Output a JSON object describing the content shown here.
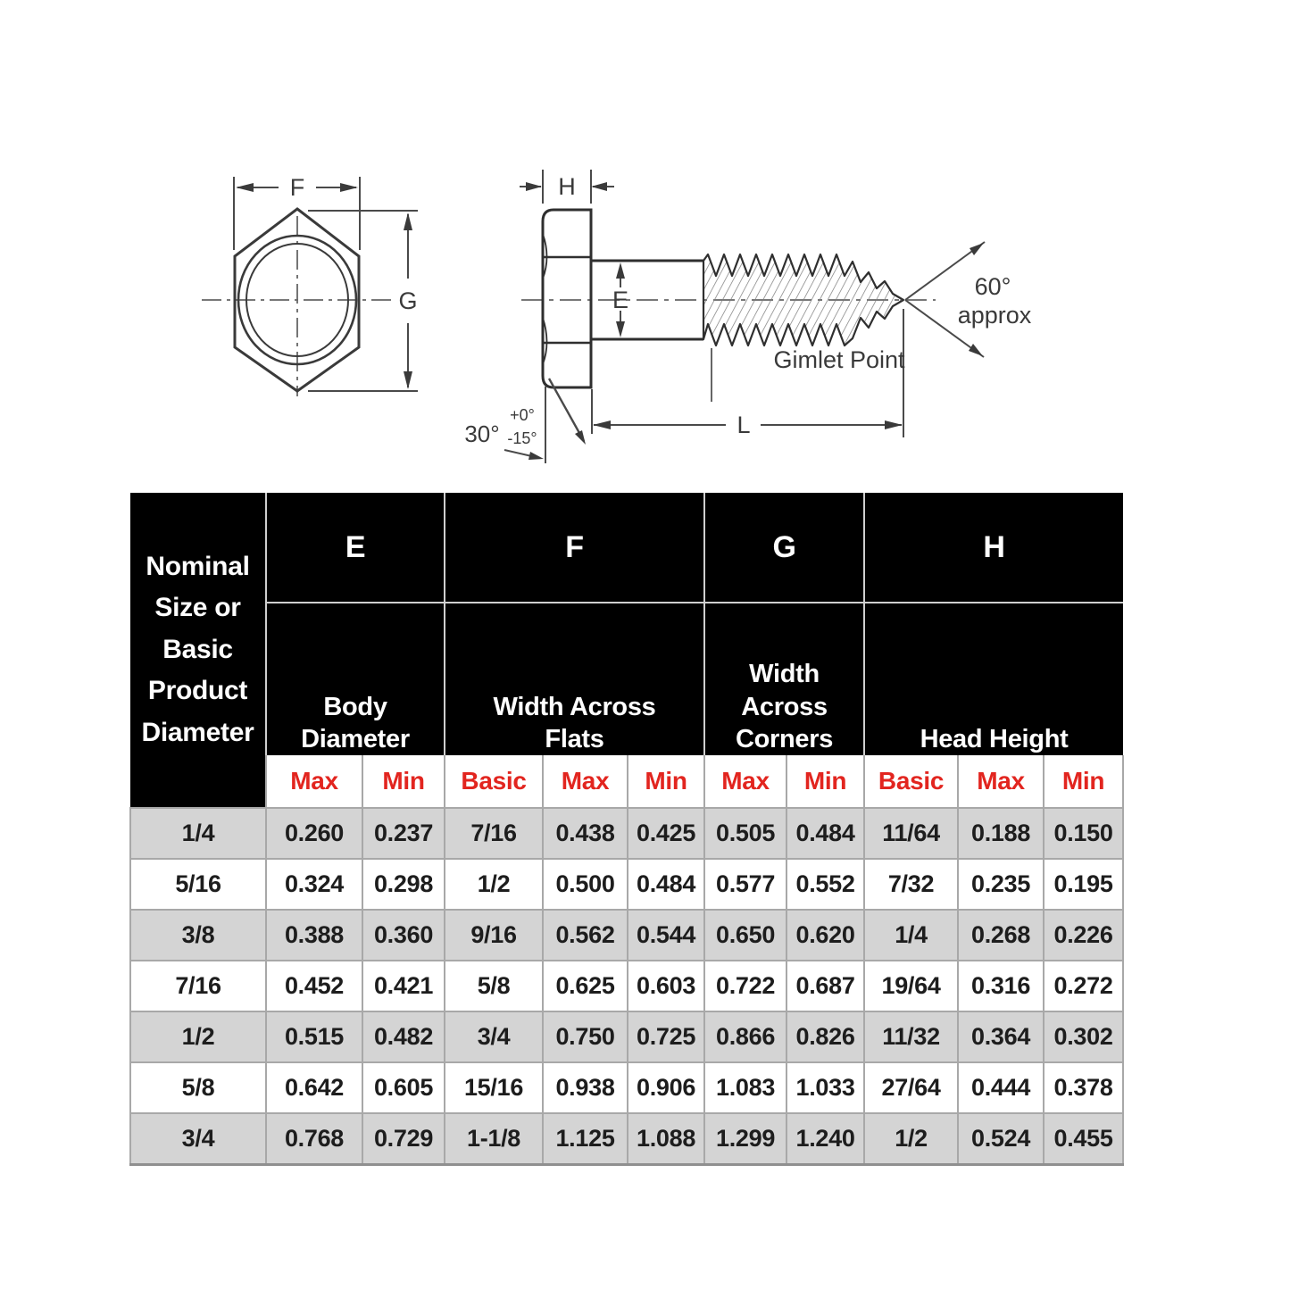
{
  "diagram": {
    "front_view": {
      "f_label": "F",
      "g_label": "G"
    },
    "side_view": {
      "h_label": "H",
      "e_label": "E",
      "l_label": "L",
      "gimlet_label": "Gimlet Point",
      "tip_angle": "60°",
      "tip_angle_note": "approx",
      "chamfer_angle": "30°",
      "chamfer_tol_plus": "+0°",
      "chamfer_tol_minus": "-15°"
    }
  },
  "table": {
    "corner_header": "Nominal\nSize or\nBasic\nProduct\nDiameter",
    "groups": [
      {
        "letter": "E",
        "name": "Body\nDiameter",
        "cols": [
          "Max",
          "Min"
        ]
      },
      {
        "letter": "F",
        "name": "Width Across\nFlats",
        "cols": [
          "Basic",
          "Max",
          "Min"
        ]
      },
      {
        "letter": "G",
        "name": "Width Across\nCorners",
        "cols": [
          "Max",
          "Min"
        ]
      },
      {
        "letter": "H",
        "name": "Head Height",
        "cols": [
          "Basic",
          "Max",
          "Min"
        ]
      }
    ],
    "rows": [
      [
        "1/4",
        "0.260",
        "0.237",
        "7/16",
        "0.438",
        "0.425",
        "0.505",
        "0.484",
        "11/64",
        "0.188",
        "0.150"
      ],
      [
        "5/16",
        "0.324",
        "0.298",
        "1/2",
        "0.500",
        "0.484",
        "0.577",
        "0.552",
        "7/32",
        "0.235",
        "0.195"
      ],
      [
        "3/8",
        "0.388",
        "0.360",
        "9/16",
        "0.562",
        "0.544",
        "0.650",
        "0.620",
        "1/4",
        "0.268",
        "0.226"
      ],
      [
        "7/16",
        "0.452",
        "0.421",
        "5/8",
        "0.625",
        "0.603",
        "0.722",
        "0.687",
        "19/64",
        "0.316",
        "0.272"
      ],
      [
        "1/2",
        "0.515",
        "0.482",
        "3/4",
        "0.750",
        "0.725",
        "0.866",
        "0.826",
        "11/32",
        "0.364",
        "0.302"
      ],
      [
        "5/8",
        "0.642",
        "0.605",
        "15/16",
        "0.938",
        "0.906",
        "1.083",
        "1.033",
        "27/64",
        "0.444",
        "0.378"
      ],
      [
        "3/4",
        "0.768",
        "0.729",
        "1-1/8",
        "1.125",
        "1.088",
        "1.299",
        "1.240",
        "1/2",
        "0.524",
        "0.455"
      ]
    ]
  },
  "colors": {
    "header_bg": "#000000",
    "header_text": "#ffffff",
    "subheader_text": "#e2251f",
    "row_alt_bg": "#d4d4d4",
    "row_bg": "#ffffff",
    "grid_line": "#a8a8a8",
    "drawing_line": "#3a3a3a"
  }
}
